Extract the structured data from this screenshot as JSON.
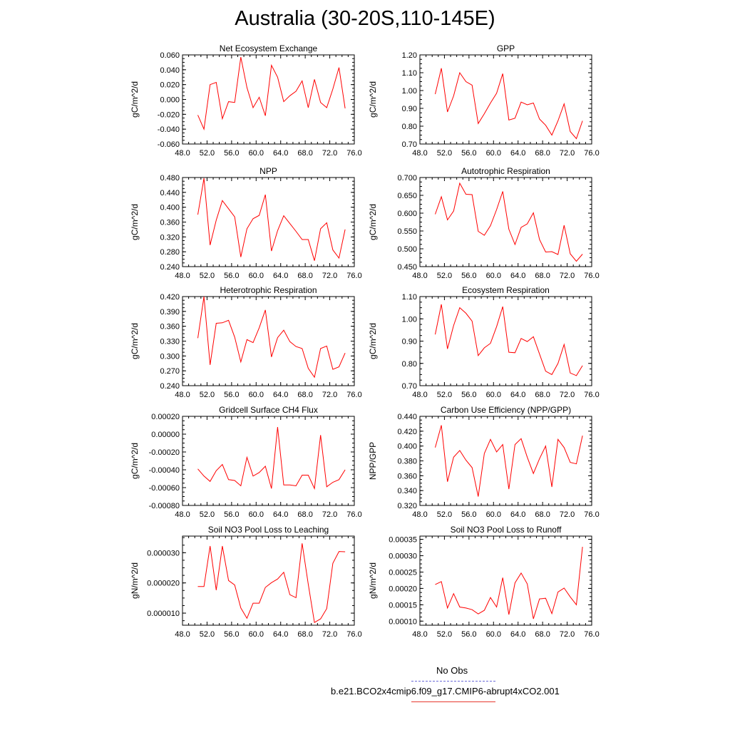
{
  "title": "Australia (30-20S,110-145E)",
  "legend": {
    "obs_label": "No Obs",
    "obs_color": "#6a6ad8",
    "run_label": "b.e21.BCO2x4cmip6.f09_g17.CMIP6-abrupt4xCO2.001",
    "run_color": "#ff0000"
  },
  "chart_data": [
    {
      "type": "line",
      "title": "Net Ecosystem Exchange",
      "ylabel": "gC/m^2/d",
      "xlim": [
        48,
        76
      ],
      "ylim": [
        -0.06,
        0.06
      ],
      "xticks": [
        "48.0",
        "52.0",
        "56.0",
        "60.0",
        "64.0",
        "68.0",
        "72.0",
        "76.0"
      ],
      "yticks": [
        "-0.060",
        "-0.040",
        "-0.020",
        "0.000",
        "0.020",
        "0.040",
        "0.060"
      ],
      "x": [
        50.5,
        51.5,
        52.5,
        53.5,
        54.5,
        55.5,
        56.5,
        57.5,
        58.5,
        59.5,
        60.5,
        61.5,
        62.5,
        63.5,
        64.5,
        65.5,
        66.5,
        67.5,
        68.5,
        69.5,
        70.5,
        71.5,
        72.5,
        73.5,
        74.5
      ],
      "series": [
        {
          "values": [
            -0.021,
            -0.04,
            0.02,
            0.023,
            -0.026,
            -0.003,
            -0.004,
            0.057,
            0.016,
            -0.011,
            0.003,
            -0.022,
            0.046,
            0.03,
            -0.003,
            0.005,
            0.011,
            0.025,
            -0.011,
            0.027,
            -0.004,
            -0.011,
            0.014,
            0.043,
            -0.012
          ]
        }
      ]
    },
    {
      "type": "line",
      "title": "GPP",
      "ylabel": "gC/m^2/d",
      "xlim": [
        48,
        76
      ],
      "ylim": [
        0.7,
        1.2
      ],
      "xticks": [
        "48.0",
        "52.0",
        "56.0",
        "60.0",
        "64.0",
        "68.0",
        "72.0",
        "76.0"
      ],
      "yticks": [
        "0.70",
        "0.80",
        "0.90",
        "1.00",
        "1.10",
        "1.20"
      ],
      "x": [
        50.5,
        51.5,
        52.5,
        53.5,
        54.5,
        55.5,
        56.5,
        57.5,
        58.5,
        59.5,
        60.5,
        61.5,
        62.5,
        63.5,
        64.5,
        65.5,
        66.5,
        67.5,
        68.5,
        69.5,
        70.5,
        71.5,
        72.5,
        73.5,
        74.5
      ],
      "series": [
        {
          "values": [
            0.98,
            1.125,
            0.88,
            0.97,
            1.1,
            1.05,
            1.03,
            0.815,
            0.87,
            0.93,
            0.985,
            1.095,
            0.835,
            0.845,
            0.935,
            0.92,
            0.93,
            0.84,
            0.805,
            0.75,
            0.83,
            0.925,
            0.77,
            0.73,
            0.83
          ]
        }
      ]
    },
    {
      "type": "line",
      "title": "NPP",
      "ylabel": "gC/m^2/d",
      "xlim": [
        48,
        76
      ],
      "ylim": [
        0.24,
        0.48
      ],
      "xticks": [
        "48.0",
        "52.0",
        "56.0",
        "60.0",
        "64.0",
        "68.0",
        "72.0",
        "76.0"
      ],
      "yticks": [
        "0.240",
        "0.280",
        "0.320",
        "0.360",
        "0.400",
        "0.440",
        "0.480"
      ],
      "x": [
        50.5,
        51.5,
        52.5,
        53.5,
        54.5,
        55.5,
        56.5,
        57.5,
        58.5,
        59.5,
        60.5,
        61.5,
        62.5,
        63.5,
        64.5,
        65.5,
        66.5,
        67.5,
        68.5,
        69.5,
        70.5,
        71.5,
        72.5,
        73.5,
        74.5
      ],
      "series": [
        {
          "values": [
            0.38,
            0.478,
            0.298,
            0.365,
            0.418,
            0.396,
            0.374,
            0.266,
            0.342,
            0.369,
            0.378,
            0.434,
            0.282,
            0.337,
            0.377,
            0.356,
            0.335,
            0.313,
            0.313,
            0.256,
            0.342,
            0.358,
            0.285,
            0.263,
            0.34
          ]
        }
      ]
    },
    {
      "type": "line",
      "title": "Autotrophic Respiration",
      "ylabel": "gC/m^2/d",
      "xlim": [
        48,
        76
      ],
      "ylim": [
        0.45,
        0.7
      ],
      "xticks": [
        "48.0",
        "52.0",
        "56.0",
        "60.0",
        "64.0",
        "68.0",
        "72.0",
        "76.0"
      ],
      "yticks": [
        "0.450",
        "0.500",
        "0.550",
        "0.600",
        "0.650",
        "0.700"
      ],
      "x": [
        50.5,
        51.5,
        52.5,
        53.5,
        54.5,
        55.5,
        56.5,
        57.5,
        58.5,
        59.5,
        60.5,
        61.5,
        62.5,
        63.5,
        64.5,
        65.5,
        66.5,
        67.5,
        68.5,
        69.5,
        70.5,
        71.5,
        72.5,
        73.5,
        74.5
      ],
      "series": [
        {
          "values": [
            0.597,
            0.646,
            0.581,
            0.606,
            0.684,
            0.653,
            0.652,
            0.549,
            0.538,
            0.565,
            0.61,
            0.661,
            0.555,
            0.512,
            0.56,
            0.57,
            0.601,
            0.526,
            0.491,
            0.492,
            0.484,
            0.566,
            0.486,
            0.465,
            0.485
          ]
        }
      ]
    },
    {
      "type": "line",
      "title": "Heterotrophic Respiration",
      "ylabel": "gC/m^2/d",
      "xlim": [
        48,
        76
      ],
      "ylim": [
        0.24,
        0.42
      ],
      "xticks": [
        "48.0",
        "52.0",
        "56.0",
        "60.0",
        "64.0",
        "68.0",
        "72.0",
        "76.0"
      ],
      "yticks": [
        "0.240",
        "0.270",
        "0.300",
        "0.330",
        "0.360",
        "0.390",
        "0.420"
      ],
      "x": [
        50.5,
        51.5,
        52.5,
        53.5,
        54.5,
        55.5,
        56.5,
        57.5,
        58.5,
        59.5,
        60.5,
        61.5,
        62.5,
        63.5,
        64.5,
        65.5,
        66.5,
        67.5,
        68.5,
        69.5,
        70.5,
        71.5,
        72.5,
        73.5,
        74.5
      ],
      "series": [
        {
          "values": [
            0.336,
            0.42,
            0.282,
            0.366,
            0.367,
            0.372,
            0.338,
            0.288,
            0.333,
            0.327,
            0.357,
            0.393,
            0.298,
            0.337,
            0.352,
            0.329,
            0.319,
            0.315,
            0.275,
            0.257,
            0.315,
            0.32,
            0.273,
            0.278,
            0.306
          ]
        }
      ]
    },
    {
      "type": "line",
      "title": "Ecosystem Respiration",
      "ylabel": "gC/m^2/d",
      "xlim": [
        48,
        76
      ],
      "ylim": [
        0.7,
        1.1
      ],
      "xticks": [
        "48.0",
        "52.0",
        "56.0",
        "60.0",
        "64.0",
        "68.0",
        "72.0",
        "76.0"
      ],
      "yticks": [
        "0.70",
        "0.80",
        "0.90",
        "1.00",
        "1.10"
      ],
      "x": [
        50.5,
        51.5,
        52.5,
        53.5,
        54.5,
        55.5,
        56.5,
        57.5,
        58.5,
        59.5,
        60.5,
        61.5,
        62.5,
        63.5,
        64.5,
        65.5,
        66.5,
        67.5,
        68.5,
        69.5,
        70.5,
        71.5,
        72.5,
        73.5,
        74.5
      ],
      "series": [
        {
          "values": [
            0.93,
            1.065,
            0.865,
            0.97,
            1.05,
            1.025,
            0.99,
            0.835,
            0.87,
            0.89,
            0.965,
            1.055,
            0.85,
            0.848,
            0.912,
            0.898,
            0.92,
            0.842,
            0.765,
            0.75,
            0.8,
            0.885,
            0.757,
            0.745,
            0.79
          ]
        }
      ]
    },
    {
      "type": "line",
      "title": "Gridcell Surface CH4 Flux",
      "ylabel": "gC/m^2/d",
      "xlim": [
        48,
        76
      ],
      "ylim": [
        -0.0008,
        0.0002
      ],
      "xticks": [
        "48.0",
        "52.0",
        "56.0",
        "60.0",
        "64.0",
        "68.0",
        "72.0",
        "76.0"
      ],
      "yticks": [
        "-0.00080",
        "-0.00060",
        "-0.00040",
        "-0.00020",
        "0.00000",
        "0.00020"
      ],
      "x": [
        50.5,
        51.5,
        52.5,
        53.5,
        54.5,
        55.5,
        56.5,
        57.5,
        58.5,
        59.5,
        60.5,
        61.5,
        62.5,
        63.5,
        64.5,
        65.5,
        66.5,
        67.5,
        68.5,
        69.5,
        70.5,
        71.5,
        72.5,
        73.5,
        74.5
      ],
      "series": [
        {
          "values": [
            -0.00039,
            -0.00047,
            -0.00053,
            -0.00041,
            -0.00034,
            -0.00051,
            -0.00052,
            -0.00058,
            -0.00026,
            -0.00047,
            -0.00043,
            -0.00036,
            -0.00061,
            8e-05,
            -0.00057,
            -0.00057,
            -0.00058,
            -0.00046,
            -0.00046,
            -0.00061,
            -1e-05,
            -0.00059,
            -0.00054,
            -0.00051,
            -0.0004
          ]
        }
      ]
    },
    {
      "type": "line",
      "title": "Carbon Use Efficiency (NPP/GPP)",
      "ylabel": "NPP/GPP",
      "xlim": [
        48,
        76
      ],
      "ylim": [
        0.32,
        0.44
      ],
      "xticks": [
        "48.0",
        "52.0",
        "56.0",
        "60.0",
        "64.0",
        "68.0",
        "72.0",
        "76.0"
      ],
      "yticks": [
        "0.320",
        "0.340",
        "0.360",
        "0.380",
        "0.400",
        "0.420",
        "0.440"
      ],
      "x": [
        50.5,
        51.5,
        52.5,
        53.5,
        54.5,
        55.5,
        56.5,
        57.5,
        58.5,
        59.5,
        60.5,
        61.5,
        62.5,
        63.5,
        64.5,
        65.5,
        66.5,
        67.5,
        68.5,
        69.5,
        70.5,
        71.5,
        72.5,
        73.5,
        74.5
      ],
      "series": [
        {
          "values": [
            0.398,
            0.428,
            0.352,
            0.385,
            0.394,
            0.381,
            0.371,
            0.332,
            0.39,
            0.409,
            0.392,
            0.402,
            0.342,
            0.402,
            0.41,
            0.385,
            0.363,
            0.383,
            0.4,
            0.345,
            0.409,
            0.398,
            0.378,
            0.376,
            0.414
          ]
        }
      ]
    },
    {
      "type": "line",
      "title": "Soil NO3 Pool Loss to Leaching",
      "ylabel": "gN/m^2/d",
      "xlim": [
        48,
        76
      ],
      "ylim": [
        6e-06,
        3.55e-05
      ],
      "xticks": [
        "48.0",
        "52.0",
        "56.0",
        "60.0",
        "64.0",
        "68.0",
        "72.0",
        "76.0"
      ],
      "yticks": [
        "0.000010",
        "0.000020",
        "0.000030"
      ],
      "ytick_values": [
        1e-05,
        2e-05,
        3e-05
      ],
      "x": [
        50.5,
        51.5,
        52.5,
        53.5,
        54.5,
        55.5,
        56.5,
        57.5,
        58.5,
        59.5,
        60.5,
        61.5,
        62.5,
        63.5,
        64.5,
        65.5,
        66.5,
        67.5,
        68.5,
        69.5,
        70.5,
        71.5,
        72.5,
        73.5,
        74.5
      ],
      "series": [
        {
          "values": [
            1.88e-05,
            1.88e-05,
            3.22e-05,
            1.76e-05,
            3.22e-05,
            2.08e-05,
            1.93e-05,
            1.17e-05,
            8.3e-06,
            1.33e-05,
            1.33e-05,
            1.85e-05,
            2.01e-05,
            2.13e-05,
            2.35e-05,
            1.61e-05,
            1.51e-05,
            3.31e-05,
            1.96e-05,
            6.9e-06,
            8.1e-06,
            1.15e-05,
            2.65e-05,
            3.04e-05,
            3.03e-05
          ]
        }
      ]
    },
    {
      "type": "line",
      "title": "Soil NO3 Pool Loss to Runoff",
      "ylabel": "gN/m^2/d",
      "xlim": [
        48,
        76
      ],
      "ylim": [
        8.75e-05,
        0.00036
      ],
      "xticks": [
        "48.0",
        "52.0",
        "56.0",
        "60.0",
        "64.0",
        "68.0",
        "72.0",
        "76.0"
      ],
      "yticks": [
        "0.00010",
        "0.00015",
        "0.00020",
        "0.00025",
        "0.00030",
        "0.00035"
      ],
      "ytick_values": [
        0.0001,
        0.00015,
        0.0002,
        0.00025,
        0.0003,
        0.00035
      ],
      "x": [
        50.5,
        51.5,
        52.5,
        53.5,
        54.5,
        55.5,
        56.5,
        57.5,
        58.5,
        59.5,
        60.5,
        61.5,
        62.5,
        63.5,
        64.5,
        65.5,
        66.5,
        67.5,
        68.5,
        69.5,
        70.5,
        71.5,
        72.5,
        73.5,
        74.5
      ],
      "series": [
        {
          "values": [
            0.000212,
            0.000221,
            0.00014,
            0.000184,
            0.000143,
            0.00014,
            0.000135,
            0.000122,
            0.000133,
            0.000172,
            0.000143,
            0.000233,
            0.00012,
            0.000217,
            0.000247,
            0.000214,
            0.000107,
            0.000168,
            0.00017,
            0.000123,
            0.000189,
            0.000201,
            0.000174,
            0.00015,
            0.000327
          ]
        }
      ]
    }
  ]
}
